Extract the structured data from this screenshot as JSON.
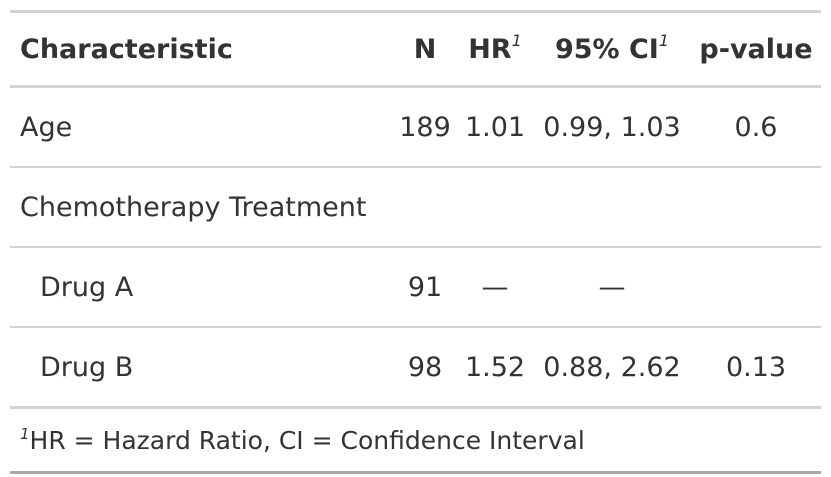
{
  "headers": {
    "characteristic": "Characteristic",
    "n": "N",
    "hr": "HR",
    "hr_footnote_mark": "1",
    "ci": "95% CI",
    "ci_footnote_mark": "1",
    "p_value": "p-value"
  },
  "rows": [
    {
      "label": "Age",
      "n": "189",
      "hr": "1.01",
      "ci": "0.99, 1.03",
      "p": "0.6"
    },
    {
      "label": "Chemotherapy Treatment",
      "n": "",
      "hr": "",
      "ci": "",
      "p": ""
    },
    {
      "label": "Drug A",
      "n": "91",
      "hr": "—",
      "ci": "—",
      "p": ""
    },
    {
      "label": "Drug B",
      "n": "98",
      "hr": "1.52",
      "ci": "0.88, 2.62",
      "p": "0.13"
    }
  ],
  "footnote": {
    "mark": "1",
    "text": "HR = Hazard Ratio, CI = Confidence Interval"
  }
}
